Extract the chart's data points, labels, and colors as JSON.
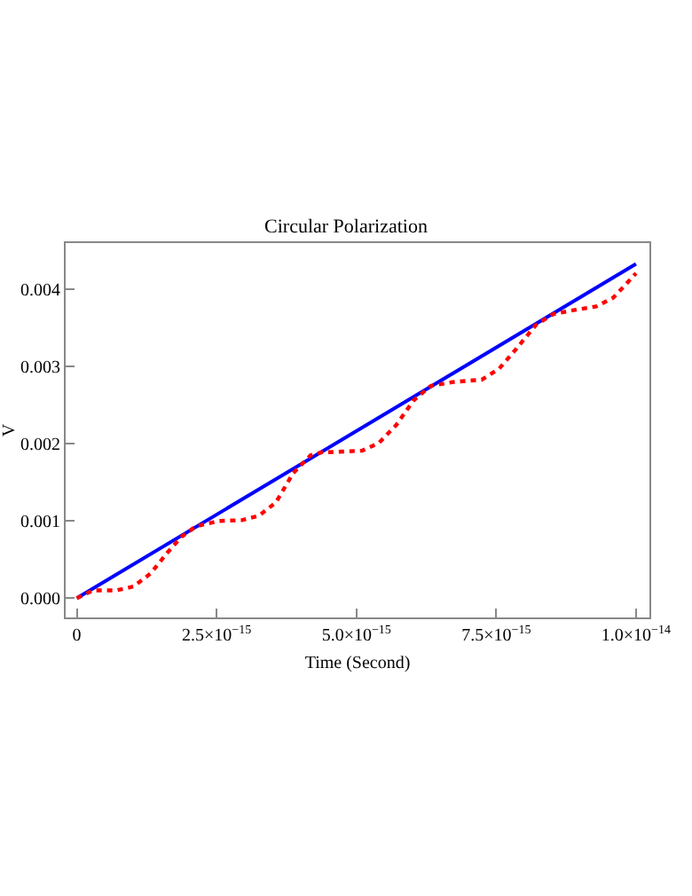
{
  "chart_data": {
    "type": "line",
    "title": "Circular Polarization",
    "xlabel": "Time (Second)",
    "ylabel": "V",
    "xlim": [
      -2e-16,
      1.024e-14
    ],
    "ylim": [
      -0.00025,
      0.0046
    ],
    "xticks": [
      0,
      {
        "value": 2.5e-15,
        "label": "2.5×10$^{−15}$"
      },
      {
        "value": 5e-15,
        "label": "5.0×10$^{−15}$"
      },
      {
        "value": 7.5e-15,
        "label": "7.5×10$^{−15}$"
      },
      {
        "value": 1e-14,
        "label": "1.0×10$^{−14}$"
      }
    ],
    "yticks": [
      {
        "value": 0,
        "label": "0.000"
      },
      {
        "value": 0.001,
        "label": "0.001"
      },
      {
        "value": 0.002,
        "label": "0.002"
      },
      {
        "value": 0.003,
        "label": "0.003"
      },
      {
        "value": 0.004,
        "label": "0.004"
      }
    ],
    "marker": "none",
    "series": [
      {
        "color": "#0000ff",
        "line_style": "solid",
        "x": [
          0,
          1e-14
        ],
        "values": [
          0,
          0.00433
        ]
      },
      {
        "color": "#ff0000",
        "line_style": "dotted",
        "x": [
          0,
          2.9e-16,
          7e-16,
          1.01e-15,
          1.32e-15,
          1.62e-15,
          1.88e-15,
          2.13e-15,
          2.54e-15,
          2.95e-15,
          3.26e-15,
          3.56e-15,
          3.87e-15,
          4.18e-15,
          4.38e-15,
          4.48e-15,
          5.1e-15,
          5.4e-15,
          5.71e-15,
          6.02e-15,
          6.33e-15,
          6.73e-15,
          7.24e-15,
          7.55e-15,
          7.86e-15,
          8.21e-15,
          8.52e-15,
          8.88e-15,
          9.29e-15,
          9.59e-15,
          9.85e-15,
          1e-14
        ],
        "values": [
          0,
          0.0001,
          0.0001,
          0.00015,
          0.00032,
          0.00059,
          0.0008,
          0.00093,
          0.001,
          0.00101,
          0.00107,
          0.00124,
          0.00162,
          0.00185,
          0.00189,
          0.00189,
          0.00191,
          0.00201,
          0.00224,
          0.00256,
          0.00275,
          0.0028,
          0.00283,
          0.00297,
          0.00323,
          0.00354,
          0.00368,
          0.00373,
          0.00378,
          0.00389,
          0.00409,
          0.00421
        ]
      }
    ]
  }
}
